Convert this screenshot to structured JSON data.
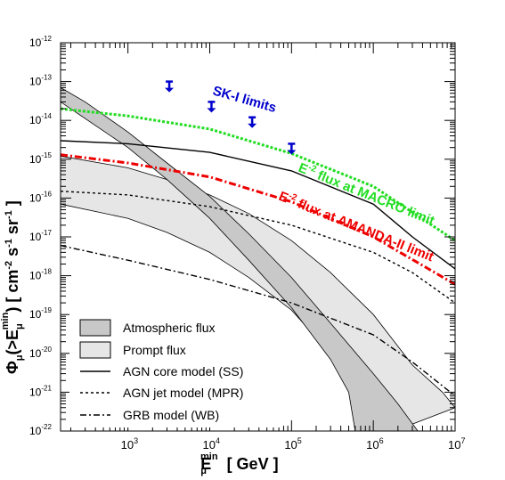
{
  "chart_data": {
    "type": "line",
    "x_scale": "log",
    "y_scale": "log",
    "xlim": [
      150,
      10000000
    ],
    "ylim": [
      1e-22,
      1e-12
    ],
    "xlabel": {
      "main": "E",
      "sub": "μ",
      "sup": "min",
      "unit": "[ GeV ]"
    },
    "ylabel": {
      "main": "Φ",
      "sub": "μ",
      "arg_open": "(>E",
      "arg_sub": "μ",
      "arg_sup": "min",
      "arg_close": ")",
      "unit_open": "[ cm",
      "unit_sup1": "-2",
      "unit_mid1": " s",
      "unit_sup2": "-1",
      "unit_mid2": " sr",
      "unit_sup3": "-1",
      "unit_close": " ]"
    },
    "x_ticks": [
      {
        "exp": 3,
        "label": "10",
        "sup": "3"
      },
      {
        "exp": 4,
        "label": "10",
        "sup": "4"
      },
      {
        "exp": 5,
        "label": "10",
        "sup": "5"
      },
      {
        "exp": 6,
        "label": "10",
        "sup": "6"
      },
      {
        "exp": 7,
        "label": "10",
        "sup": "7"
      }
    ],
    "y_ticks": [
      {
        "exp": -22,
        "label": "10",
        "sup": "-22"
      },
      {
        "exp": -21,
        "label": "10",
        "sup": "-21"
      },
      {
        "exp": -20,
        "label": "10",
        "sup": "-20"
      },
      {
        "exp": -19,
        "label": "10",
        "sup": "-19"
      },
      {
        "exp": -18,
        "label": "10",
        "sup": "-18"
      },
      {
        "exp": -17,
        "label": "10",
        "sup": "-17"
      },
      {
        "exp": -16,
        "label": "10",
        "sup": "-16"
      },
      {
        "exp": -15,
        "label": "10",
        "sup": "-15"
      },
      {
        "exp": -14,
        "label": "10",
        "sup": "-14"
      },
      {
        "exp": -13,
        "label": "10",
        "sup": "-13"
      },
      {
        "exp": -12,
        "label": "10",
        "sup": "-12"
      }
    ],
    "bands": [
      {
        "name": "Atmospheric flux",
        "fill": "#c8c8c8",
        "upper": [
          [
            150,
            7e-14
          ],
          [
            300,
            3e-14
          ],
          [
            1000,
            5e-15
          ],
          [
            3000,
            8e-16
          ],
          [
            10000,
            1.1e-16
          ],
          [
            30000,
            1.2e-17
          ],
          [
            100000,
            9e-19
          ],
          [
            300000,
            6e-20
          ],
          [
            1000000,
            3e-21
          ],
          [
            2000000,
            5e-22
          ],
          [
            3500000,
            1e-22
          ]
        ],
        "lower": [
          [
            150,
            3e-14
          ],
          [
            1000,
            2e-15
          ],
          [
            3000,
            3e-16
          ],
          [
            10000,
            3e-17
          ],
          [
            30000,
            2.5e-18
          ],
          [
            100000,
            1.5e-19
          ],
          [
            300000,
            7e-21
          ],
          [
            500000,
            1e-21
          ],
          [
            600000,
            1e-22
          ]
        ]
      },
      {
        "name": "Prompt flux",
        "fill": "#e6e6e6",
        "upper": [
          [
            150,
            1.2e-15
          ],
          [
            1000,
            6e-16
          ],
          [
            3000,
            3e-16
          ],
          [
            10000,
            1.2e-16
          ],
          [
            30000,
            4e-17
          ],
          [
            100000,
            8e-18
          ],
          [
            300000,
            1.2e-18
          ],
          [
            1000000,
            1e-19
          ],
          [
            3000000,
            5e-21
          ],
          [
            7000000,
            1e-21
          ],
          [
            10000000,
            4e-22
          ]
        ],
        "lower": [
          [
            150,
            7e-17
          ],
          [
            1000,
            3e-17
          ],
          [
            3000,
            1.3e-17
          ],
          [
            10000,
            4e-18
          ],
          [
            30000,
            9e-19
          ],
          [
            100000,
            1.3e-19
          ],
          [
            300000,
            1e-20
          ],
          [
            1000000,
            8e-22
          ],
          [
            1800000,
            1e-22
          ]
        ]
      }
    ],
    "series": [
      {
        "name": "AGN core model (SS)",
        "color": "#000000",
        "dash": "solid",
        "points": [
          [
            150,
            3e-15
          ],
          [
            1000,
            2.5e-15
          ],
          [
            10000,
            1.5e-15
          ],
          [
            100000,
            5e-16
          ],
          [
            1000000,
            7e-17
          ],
          [
            3000000,
            1e-17
          ],
          [
            10000000,
            1.5e-18
          ]
        ]
      },
      {
        "name": "AGN jet model (MPR)",
        "color": "#000000",
        "dash": "dotted",
        "points": [
          [
            150,
            1.5e-16
          ],
          [
            1000,
            1.2e-16
          ],
          [
            10000,
            6e-17
          ],
          [
            100000,
            2e-17
          ],
          [
            1000000,
            4e-18
          ],
          [
            3000000,
            1.2e-18
          ],
          [
            10000000,
            2e-19
          ]
        ]
      },
      {
        "name": "GRB model (WB)",
        "color": "#000000",
        "dash": "dashdot",
        "points": [
          [
            150,
            6e-18
          ],
          [
            1000,
            2.5e-18
          ],
          [
            10000,
            8e-19
          ],
          [
            100000,
            2e-19
          ],
          [
            1000000,
            3e-20
          ],
          [
            3000000,
            6e-21
          ],
          [
            10000000,
            8e-22
          ]
        ]
      },
      {
        "name": "E^-2 flux at MACRO limit",
        "color": "#22dd22",
        "dash": "dotted",
        "thick": true,
        "points": [
          [
            150,
            2e-14
          ],
          [
            1000,
            1.3e-14
          ],
          [
            10000,
            6e-15
          ],
          [
            100000,
            1.4e-15
          ],
          [
            1000000,
            2e-16
          ],
          [
            10000000,
            8e-18
          ]
        ]
      },
      {
        "name": "E^-2 flux at AMANDA-II limit",
        "color": "#ee0000",
        "dash": "dashdot",
        "thick": true,
        "points": [
          [
            150,
            1.3e-15
          ],
          [
            1000,
            8e-16
          ],
          [
            10000,
            3.5e-16
          ],
          [
            100000,
            8e-17
          ],
          [
            1000000,
            1e-17
          ],
          [
            10000000,
            6e-19
          ]
        ]
      }
    ],
    "sk_limits": {
      "label": "SK-I limits",
      "color": "#0000cc",
      "points": [
        [
          3200,
          1e-13
        ],
        [
          10500,
          3e-14
        ],
        [
          33000,
          1.2e-14
        ],
        [
          100000,
          2.5e-15
        ]
      ]
    },
    "annotations": [
      {
        "text": "E",
        "sup": "-2",
        "rest": " flux at MACRO limit",
        "color": "#22dd22"
      },
      {
        "text": "E",
        "sup": "-2",
        "rest": " flux at AMANDA-II limit",
        "color": "#ee0000"
      }
    ],
    "legend": {
      "position": "bottom-left",
      "entries": [
        {
          "label": "Atmospheric flux",
          "kind": "box",
          "fill": "#c8c8c8"
        },
        {
          "label": "Prompt flux",
          "kind": "box",
          "fill": "#e6e6e6"
        },
        {
          "label": "AGN core model (SS)",
          "kind": "line",
          "dash": "solid"
        },
        {
          "label": "AGN jet model (MPR)",
          "kind": "line",
          "dash": "dotted"
        },
        {
          "label": "GRB model (WB)",
          "kind": "line",
          "dash": "dashdot"
        }
      ]
    }
  }
}
